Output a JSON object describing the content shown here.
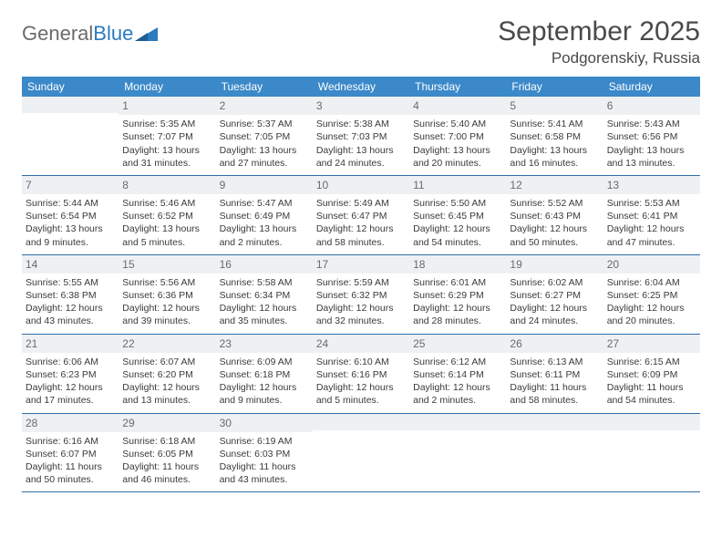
{
  "logo": {
    "text1": "General",
    "text2": "Blue"
  },
  "title": "September 2025",
  "location": "Podgorenskiy, Russia",
  "colors": {
    "header_bg": "#3b89c9",
    "header_text": "#ffffff",
    "daynum_bg": "#eef1f3",
    "daynum_text": "#6a6a6a",
    "body_text": "#3a3a3a",
    "rule": "#2f6ea8",
    "logo_gray": "#6b6b6b",
    "logo_blue": "#2a7bbf"
  },
  "day_names": [
    "Sunday",
    "Monday",
    "Tuesday",
    "Wednesday",
    "Thursday",
    "Friday",
    "Saturday"
  ],
  "weeks": [
    [
      {
        "num": "",
        "sunrise": "",
        "sunset": "",
        "daylight": ""
      },
      {
        "num": "1",
        "sunrise": "Sunrise: 5:35 AM",
        "sunset": "Sunset: 7:07 PM",
        "daylight": "Daylight: 13 hours and 31 minutes."
      },
      {
        "num": "2",
        "sunrise": "Sunrise: 5:37 AM",
        "sunset": "Sunset: 7:05 PM",
        "daylight": "Daylight: 13 hours and 27 minutes."
      },
      {
        "num": "3",
        "sunrise": "Sunrise: 5:38 AM",
        "sunset": "Sunset: 7:03 PM",
        "daylight": "Daylight: 13 hours and 24 minutes."
      },
      {
        "num": "4",
        "sunrise": "Sunrise: 5:40 AM",
        "sunset": "Sunset: 7:00 PM",
        "daylight": "Daylight: 13 hours and 20 minutes."
      },
      {
        "num": "5",
        "sunrise": "Sunrise: 5:41 AM",
        "sunset": "Sunset: 6:58 PM",
        "daylight": "Daylight: 13 hours and 16 minutes."
      },
      {
        "num": "6",
        "sunrise": "Sunrise: 5:43 AM",
        "sunset": "Sunset: 6:56 PM",
        "daylight": "Daylight: 13 hours and 13 minutes."
      }
    ],
    [
      {
        "num": "7",
        "sunrise": "Sunrise: 5:44 AM",
        "sunset": "Sunset: 6:54 PM",
        "daylight": "Daylight: 13 hours and 9 minutes."
      },
      {
        "num": "8",
        "sunrise": "Sunrise: 5:46 AM",
        "sunset": "Sunset: 6:52 PM",
        "daylight": "Daylight: 13 hours and 5 minutes."
      },
      {
        "num": "9",
        "sunrise": "Sunrise: 5:47 AM",
        "sunset": "Sunset: 6:49 PM",
        "daylight": "Daylight: 13 hours and 2 minutes."
      },
      {
        "num": "10",
        "sunrise": "Sunrise: 5:49 AM",
        "sunset": "Sunset: 6:47 PM",
        "daylight": "Daylight: 12 hours and 58 minutes."
      },
      {
        "num": "11",
        "sunrise": "Sunrise: 5:50 AM",
        "sunset": "Sunset: 6:45 PM",
        "daylight": "Daylight: 12 hours and 54 minutes."
      },
      {
        "num": "12",
        "sunrise": "Sunrise: 5:52 AM",
        "sunset": "Sunset: 6:43 PM",
        "daylight": "Daylight: 12 hours and 50 minutes."
      },
      {
        "num": "13",
        "sunrise": "Sunrise: 5:53 AM",
        "sunset": "Sunset: 6:41 PM",
        "daylight": "Daylight: 12 hours and 47 minutes."
      }
    ],
    [
      {
        "num": "14",
        "sunrise": "Sunrise: 5:55 AM",
        "sunset": "Sunset: 6:38 PM",
        "daylight": "Daylight: 12 hours and 43 minutes."
      },
      {
        "num": "15",
        "sunrise": "Sunrise: 5:56 AM",
        "sunset": "Sunset: 6:36 PM",
        "daylight": "Daylight: 12 hours and 39 minutes."
      },
      {
        "num": "16",
        "sunrise": "Sunrise: 5:58 AM",
        "sunset": "Sunset: 6:34 PM",
        "daylight": "Daylight: 12 hours and 35 minutes."
      },
      {
        "num": "17",
        "sunrise": "Sunrise: 5:59 AM",
        "sunset": "Sunset: 6:32 PM",
        "daylight": "Daylight: 12 hours and 32 minutes."
      },
      {
        "num": "18",
        "sunrise": "Sunrise: 6:01 AM",
        "sunset": "Sunset: 6:29 PM",
        "daylight": "Daylight: 12 hours and 28 minutes."
      },
      {
        "num": "19",
        "sunrise": "Sunrise: 6:02 AM",
        "sunset": "Sunset: 6:27 PM",
        "daylight": "Daylight: 12 hours and 24 minutes."
      },
      {
        "num": "20",
        "sunrise": "Sunrise: 6:04 AM",
        "sunset": "Sunset: 6:25 PM",
        "daylight": "Daylight: 12 hours and 20 minutes."
      }
    ],
    [
      {
        "num": "21",
        "sunrise": "Sunrise: 6:06 AM",
        "sunset": "Sunset: 6:23 PM",
        "daylight": "Daylight: 12 hours and 17 minutes."
      },
      {
        "num": "22",
        "sunrise": "Sunrise: 6:07 AM",
        "sunset": "Sunset: 6:20 PM",
        "daylight": "Daylight: 12 hours and 13 minutes."
      },
      {
        "num": "23",
        "sunrise": "Sunrise: 6:09 AM",
        "sunset": "Sunset: 6:18 PM",
        "daylight": "Daylight: 12 hours and 9 minutes."
      },
      {
        "num": "24",
        "sunrise": "Sunrise: 6:10 AM",
        "sunset": "Sunset: 6:16 PM",
        "daylight": "Daylight: 12 hours and 5 minutes."
      },
      {
        "num": "25",
        "sunrise": "Sunrise: 6:12 AM",
        "sunset": "Sunset: 6:14 PM",
        "daylight": "Daylight: 12 hours and 2 minutes."
      },
      {
        "num": "26",
        "sunrise": "Sunrise: 6:13 AM",
        "sunset": "Sunset: 6:11 PM",
        "daylight": "Daylight: 11 hours and 58 minutes."
      },
      {
        "num": "27",
        "sunrise": "Sunrise: 6:15 AM",
        "sunset": "Sunset: 6:09 PM",
        "daylight": "Daylight: 11 hours and 54 minutes."
      }
    ],
    [
      {
        "num": "28",
        "sunrise": "Sunrise: 6:16 AM",
        "sunset": "Sunset: 6:07 PM",
        "daylight": "Daylight: 11 hours and 50 minutes."
      },
      {
        "num": "29",
        "sunrise": "Sunrise: 6:18 AM",
        "sunset": "Sunset: 6:05 PM",
        "daylight": "Daylight: 11 hours and 46 minutes."
      },
      {
        "num": "30",
        "sunrise": "Sunrise: 6:19 AM",
        "sunset": "Sunset: 6:03 PM",
        "daylight": "Daylight: 11 hours and 43 minutes."
      },
      {
        "num": "",
        "sunrise": "",
        "sunset": "",
        "daylight": ""
      },
      {
        "num": "",
        "sunrise": "",
        "sunset": "",
        "daylight": ""
      },
      {
        "num": "",
        "sunrise": "",
        "sunset": "",
        "daylight": ""
      },
      {
        "num": "",
        "sunrise": "",
        "sunset": "",
        "daylight": ""
      }
    ]
  ]
}
